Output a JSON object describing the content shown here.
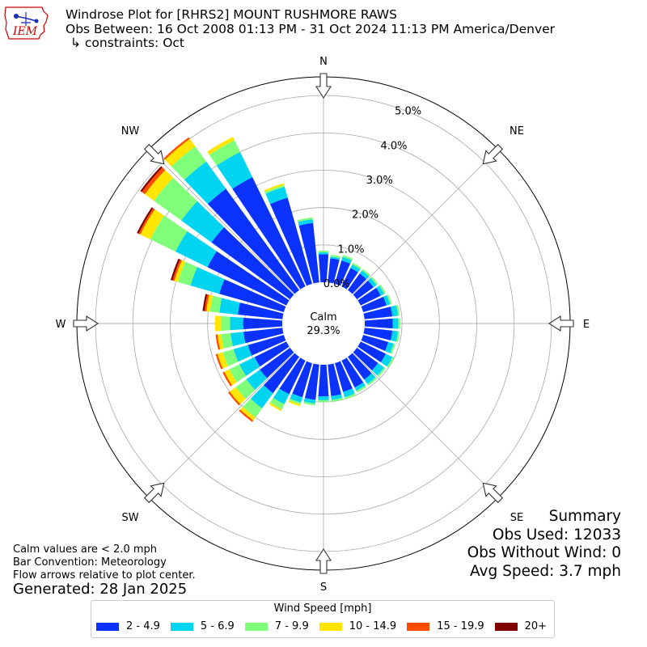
{
  "header": {
    "title": "Windrose Plot for [RHRS2] MOUNT RUSHMORE RAWS",
    "obs_between": "Obs Between: 16 Oct 2008 01:13 PM - 31 Oct 2024 11:13 PM America/Denver",
    "constraints": "↳ constraints: Oct"
  },
  "logo": {
    "text": "IEM",
    "icon": "iowa-state-outline-icon",
    "color": "#cc0000"
  },
  "notes": {
    "calm": "Calm values are < 2.0 mph",
    "bar_convention": "Bar Convention: Meteorology",
    "flow": "Flow arrows relative to plot center."
  },
  "generated": "Generated: 28 Jan 2025",
  "summary": {
    "heading": "Summary",
    "obs_used": "Obs Used: 12033",
    "obs_without_wind": "Obs Without Wind: 0",
    "avg_speed": "Avg Speed: 3.7 mph"
  },
  "legend": {
    "title": "Wind Speed [mph]",
    "items": [
      {
        "label": "2 - 4.9",
        "color": "#0a32fa"
      },
      {
        "label": "5 - 6.9",
        "color": "#00d4f0"
      },
      {
        "label": "7 - 9.9",
        "color": "#80ff7a"
      },
      {
        "label": "10 - 14.9",
        "color": "#ffe500"
      },
      {
        "label": "15 - 19.9",
        "color": "#ff4a00"
      },
      {
        "label": "20+",
        "color": "#800000"
      }
    ]
  },
  "chart_data": {
    "type": "windrose",
    "calm_label": "Calm",
    "calm_value": "29.3%",
    "radial_ticks": [
      "0.0%",
      "1.0%",
      "2.0%",
      "3.0%",
      "4.0%",
      "5.0%"
    ],
    "radial_values": [
      0,
      1,
      2,
      3,
      4,
      5
    ],
    "rlim": [
      0,
      5.5
    ],
    "grid": true,
    "directions": [
      "N",
      "NE",
      "E",
      "SE",
      "S",
      "SW",
      "W",
      "NW"
    ],
    "bin_width_deg": 10,
    "bins": [
      "2 - 4.9",
      "5 - 6.9",
      "7 - 9.9",
      "10 - 14.9",
      "15 - 19.9",
      "20+"
    ],
    "sectors": [
      {
        "dir": 0,
        "values": [
          0.75,
          0.05,
          0.05,
          0.0,
          0.0,
          0.0
        ]
      },
      {
        "dir": 10,
        "values": [
          0.65,
          0.05,
          0.05,
          0.0,
          0.0,
          0.0
        ]
      },
      {
        "dir": 20,
        "values": [
          0.65,
          0.1,
          0.05,
          0.0,
          0.0,
          0.0
        ]
      },
      {
        "dir": 30,
        "values": [
          0.55,
          0.1,
          0.05,
          0.0,
          0.0,
          0.0
        ]
      },
      {
        "dir": 40,
        "values": [
          0.55,
          0.1,
          0.05,
          0.0,
          0.0,
          0.0
        ]
      },
      {
        "dir": 50,
        "values": [
          0.55,
          0.1,
          0.05,
          0.0,
          0.0,
          0.0
        ]
      },
      {
        "dir": 60,
        "values": [
          0.6,
          0.1,
          0.05,
          0.0,
          0.0,
          0.0
        ]
      },
      {
        "dir": 70,
        "values": [
          0.65,
          0.1,
          0.05,
          0.0,
          0.0,
          0.0
        ]
      },
      {
        "dir": 80,
        "values": [
          0.75,
          0.15,
          0.05,
          0.0,
          0.0,
          0.0
        ]
      },
      {
        "dir": 90,
        "values": [
          0.75,
          0.15,
          0.05,
          0.0,
          0.0,
          0.0
        ]
      },
      {
        "dir": 100,
        "values": [
          0.75,
          0.15,
          0.05,
          0.0,
          0.0,
          0.0
        ]
      },
      {
        "dir": 110,
        "values": [
          0.7,
          0.15,
          0.05,
          0.0,
          0.0,
          0.0
        ]
      },
      {
        "dir": 120,
        "values": [
          0.75,
          0.2,
          0.05,
          0.0,
          0.0,
          0.0
        ]
      },
      {
        "dir": 130,
        "values": [
          0.7,
          0.2,
          0.05,
          0.0,
          0.0,
          0.0
        ]
      },
      {
        "dir": 140,
        "values": [
          0.75,
          0.15,
          0.05,
          0.0,
          0.0,
          0.0
        ]
      },
      {
        "dir": 150,
        "values": [
          0.8,
          0.1,
          0.05,
          0.0,
          0.0,
          0.0
        ]
      },
      {
        "dir": 160,
        "values": [
          0.8,
          0.15,
          0.05,
          0.0,
          0.0,
          0.0
        ]
      },
      {
        "dir": 170,
        "values": [
          0.85,
          0.1,
          0.05,
          0.0,
          0.0,
          0.0
        ]
      },
      {
        "dir": 180,
        "values": [
          0.85,
          0.1,
          0.05,
          0.0,
          0.0,
          0.0
        ]
      },
      {
        "dir": 190,
        "values": [
          0.95,
          0.1,
          0.05,
          0.0,
          0.0,
          0.0
        ]
      },
      {
        "dir": 200,
        "values": [
          0.95,
          0.15,
          0.05,
          0.05,
          0.0,
          0.0
        ]
      },
      {
        "dir": 210,
        "values": [
          1.0,
          0.3,
          0.15,
          0.05,
          0.0,
          0.0
        ]
      },
      {
        "dir": 220,
        "values": [
          1.2,
          0.5,
          0.3,
          0.1,
          0.05,
          0.0
        ]
      },
      {
        "dir": 230,
        "values": [
          1.0,
          0.45,
          0.35,
          0.2,
          0.05,
          0.0
        ]
      },
      {
        "dir": 240,
        "values": [
          0.95,
          0.45,
          0.3,
          0.15,
          0.05,
          0.0
        ]
      },
      {
        "dir": 250,
        "values": [
          1.0,
          0.4,
          0.3,
          0.15,
          0.05,
          0.0
        ]
      },
      {
        "dir": 260,
        "values": [
          1.05,
          0.35,
          0.25,
          0.1,
          0.05,
          0.0
        ]
      },
      {
        "dir": 270,
        "values": [
          1.05,
          0.35,
          0.25,
          0.15,
          0.0,
          0.0
        ]
      },
      {
        "dir": 280,
        "values": [
          1.2,
          0.5,
          0.25,
          0.1,
          0.05,
          0.05
        ]
      },
      {
        "dir": 290,
        "values": [
          1.8,
          0.8,
          0.35,
          0.1,
          0.05,
          0.05
        ]
      },
      {
        "dir": 300,
        "values": [
          2.35,
          0.95,
          0.75,
          0.3,
          0.05,
          0.05
        ]
      },
      {
        "dir": 310,
        "values": [
          2.6,
          1.0,
          0.9,
          0.3,
          0.1,
          0.05
        ]
      },
      {
        "dir": 320,
        "values": [
          3.35,
          0.9,
          0.5,
          0.25,
          0.05,
          0.0
        ]
      },
      {
        "dir": 330,
        "values": [
          3.25,
          0.75,
          0.35,
          0.1,
          0.0,
          0.0
        ]
      },
      {
        "dir": 340,
        "values": [
          2.4,
          0.3,
          0.05,
          0.05,
          0.0,
          0.0
        ]
      },
      {
        "dir": 350,
        "values": [
          1.6,
          0.1,
          0.05,
          0.0,
          0.0,
          0.0
        ]
      }
    ]
  }
}
